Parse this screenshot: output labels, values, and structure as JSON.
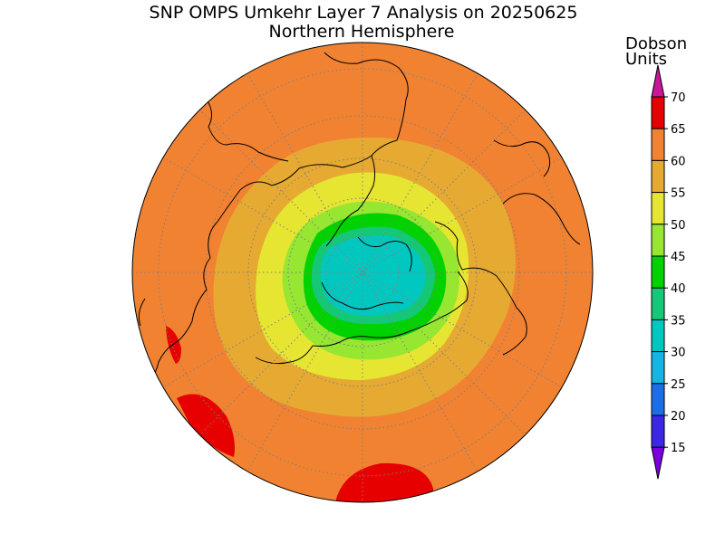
{
  "title": "SNP OMPS Umkehr Layer 7 Analysis on 20250625",
  "subtitle": "Northern Hemisphere",
  "colorbar": {
    "title_line1": "Dobson",
    "title_line2": "Units",
    "ticks": [
      "15",
      "20",
      "25",
      "30",
      "35",
      "40",
      "45",
      "50",
      "55",
      "60",
      "65",
      "70"
    ],
    "colors": [
      "#7a00e0",
      "#3a28e6",
      "#1a6ee8",
      "#15b4e6",
      "#00c8c0",
      "#14c878",
      "#00d200",
      "#96e632",
      "#e6e632",
      "#e6aa32",
      "#f08232",
      "#e60000"
    ],
    "under_color": "#7a00e0",
    "over_color": "#c8189a"
  },
  "map": {
    "projection": "north-polar-stereographic",
    "variable": "ozone layer 7 column (DU)",
    "levels_shown": [
      "30-35",
      "35-40",
      "40-45",
      "45-50",
      "50-55",
      "55-60",
      "60-65",
      "65-70"
    ]
  }
}
